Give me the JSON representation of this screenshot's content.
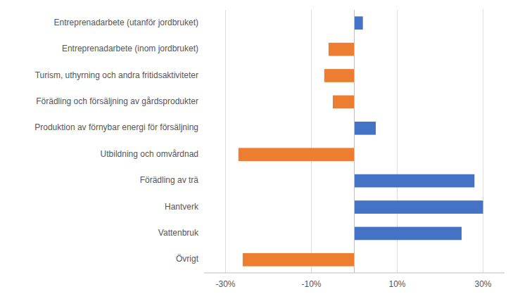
{
  "chart_data": {
    "type": "bar",
    "orientation": "horizontal",
    "categories": [
      "Entreprenadarbete (utanför jordbruket)",
      "Entreprenadarbete (inom jordbruket)",
      "Turism, uthyrning och andra fritidsaktiviteter",
      "Förädling och försäljning av gårdsprodukter",
      "Produktion av förnybar energi för försäljning",
      "Utbildning och omvårdnad",
      "Förädling av trä",
      "Hantverk",
      "Vattenbruk",
      "Övrigt"
    ],
    "values": [
      2,
      -6,
      -7,
      -5,
      5,
      -27,
      28,
      30,
      25,
      -26
    ],
    "colors": [
      "#4472c4",
      "#ed7d31",
      "#ed7d31",
      "#ed7d31",
      "#4472c4",
      "#ed7d31",
      "#4472c4",
      "#4472c4",
      "#4472c4",
      "#ed7d31"
    ],
    "xlim": [
      -35,
      35
    ],
    "xticks": [
      {
        "value": -30,
        "label": "-30%"
      },
      {
        "value": -10,
        "label": "-10%"
      },
      {
        "value": 10,
        "label": "10%"
      },
      {
        "value": 30,
        "label": "30%"
      }
    ],
    "grid": true
  }
}
